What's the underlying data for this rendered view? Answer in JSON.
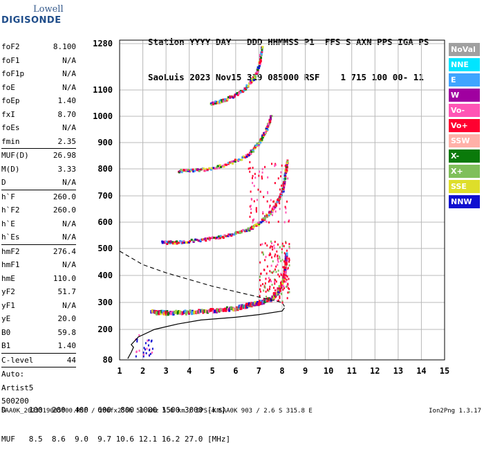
{
  "logo": {
    "top": "Lowell",
    "main": "DIGISONDE"
  },
  "header": {
    "line1": "Station YYYY DAY   DDD HHMMSS P1  FFS S AXN PPS IGA PS",
    "line2": "SaoLuis 2023 Nov15 319 085000 RSF    1 715 100 00- 11"
  },
  "params": [
    {
      "label": "foF2",
      "value": "8.100"
    },
    {
      "label": "foF1",
      "value": "N/A"
    },
    {
      "label": "foF1p",
      "value": "N/A"
    },
    {
      "label": "foE",
      "value": "N/A"
    },
    {
      "label": "foEp",
      "value": "1.40"
    },
    {
      "label": "fxI",
      "value": "8.70"
    },
    {
      "label": "foEs",
      "value": "N/A"
    },
    {
      "label": "fmin",
      "value": "2.35"
    },
    {
      "label": "MUF(D)",
      "value": "26.98"
    },
    {
      "label": "M(D)",
      "value": "3.33"
    },
    {
      "label": "D",
      "value": "N/A"
    },
    {
      "label": "h`F",
      "value": "260.0"
    },
    {
      "label": "h`F2",
      "value": "260.0"
    },
    {
      "label": "h`E",
      "value": "N/A"
    },
    {
      "label": "h`Es",
      "value": "N/A"
    },
    {
      "label": "hmF2",
      "value": "276.4"
    },
    {
      "label": "hmF1",
      "value": "N/A"
    },
    {
      "label": "hmE",
      "value": "110.0"
    },
    {
      "label": "yF2",
      "value": "51.7"
    },
    {
      "label": "yF1",
      "value": "N/A"
    },
    {
      "label": "yE",
      "value": "20.0"
    },
    {
      "label": "B0",
      "value": "59.8"
    },
    {
      "label": "B1",
      "value": "1.40"
    },
    {
      "label": "C-level",
      "value": "44"
    },
    {
      "label": "Auto:",
      "value": ""
    },
    {
      "label": "Artist5",
      "value": ""
    },
    {
      "label": "500200",
      "value": ""
    }
  ],
  "bottom": {
    "d_line": "D     100  200  400  600  800 1000 1500 3000 [km]",
    "muf_line": "MUF   8.5  8.6  9.0  9.7 10.6 12.1 16.2 27.0 [MHz]"
  },
  "footer": {
    "left": "SAA0K_2023319085000.RSF / 280fx256h 50 kHz 5.0 km / DPS-4 SAA0K 903 / 2.6 S 315.8 E",
    "right": "Ion2Png 1.3.17"
  },
  "legend": [
    {
      "label": "NoVal",
      "color": "#a0a0a0"
    },
    {
      "label": "NNE",
      "color": "#00e5ff"
    },
    {
      "label": "E",
      "color": "#3fa4ff"
    },
    {
      "label": "W",
      "color": "#a000a0"
    },
    {
      "label": "Vo-",
      "color": "#ff55b5"
    },
    {
      "label": "Vo+",
      "color": "#ff0030"
    },
    {
      "label": "SSW",
      "color": "#ffb0a8"
    },
    {
      "label": "X-",
      "color": "#0a7a0a"
    },
    {
      "label": "X+",
      "color": "#7fbf5a"
    },
    {
      "label": "SSE",
      "color": "#dede2a"
    },
    {
      "label": "NNW",
      "color": "#1010d0"
    }
  ],
  "chart_data": {
    "type": "scatter",
    "title": "",
    "xlabel": "",
    "ylabel": "",
    "xlim": [
      1,
      15
    ],
    "ylim": [
      80,
      1300
    ],
    "x_ticks": [
      1,
      2,
      3,
      4,
      5,
      6,
      7,
      8,
      9,
      10,
      11,
      12,
      13,
      14,
      15
    ],
    "y_ticks": [
      80,
      200,
      300,
      400,
      500,
      600,
      700,
      800,
      900,
      1000,
      1100,
      1280
    ],
    "grid": true,
    "traces": [
      {
        "name": "F2 trace (1st hop)",
        "points": [
          [
            2.35,
            265
          ],
          [
            3,
            262
          ],
          [
            4,
            265
          ],
          [
            5,
            270
          ],
          [
            6,
            280
          ],
          [
            6.5,
            290
          ],
          [
            7,
            300
          ],
          [
            7.5,
            315
          ],
          [
            7.8,
            340
          ],
          [
            8.0,
            380
          ],
          [
            8.1,
            430
          ],
          [
            8.15,
            480
          ]
        ]
      },
      {
        "name": "F2 trace (2nd hop)",
        "points": [
          [
            2.8,
            520
          ],
          [
            3.5,
            522
          ],
          [
            4.5,
            530
          ],
          [
            5.5,
            545
          ],
          [
            6.5,
            570
          ],
          [
            7.0,
            595
          ],
          [
            7.5,
            640
          ],
          [
            7.8,
            680
          ],
          [
            8.0,
            720
          ],
          [
            8.1,
            780
          ],
          [
            8.2,
            830
          ]
        ]
      },
      {
        "name": "F2 trace (3rd hop)",
        "points": [
          [
            3.5,
            790
          ],
          [
            4.5,
            795
          ],
          [
            5.5,
            810
          ],
          [
            6.5,
            850
          ],
          [
            7.0,
            900
          ],
          [
            7.3,
            950
          ],
          [
            7.5,
            1000
          ]
        ]
      },
      {
        "name": "F2 trace (4th hop)",
        "points": [
          [
            4.9,
            1045
          ],
          [
            5.5,
            1060
          ],
          [
            6.3,
            1095
          ],
          [
            6.8,
            1150
          ],
          [
            7.0,
            1200
          ],
          [
            7.1,
            1270
          ]
        ]
      }
    ],
    "profile_solid": [
      [
        1.35,
        85
      ],
      [
        1.5,
        110
      ],
      [
        1.6,
        130
      ],
      [
        1.5,
        140
      ],
      [
        1.8,
        170
      ],
      [
        2.5,
        200
      ],
      [
        3.5,
        220
      ],
      [
        4.5,
        235
      ],
      [
        6,
        245
      ],
      [
        7,
        255
      ],
      [
        8,
        268
      ],
      [
        8.1,
        280
      ]
    ],
    "profile_dashed": [
      [
        1,
        490
      ],
      [
        1.5,
        465
      ],
      [
        2,
        440
      ],
      [
        3,
        410
      ],
      [
        4,
        385
      ],
      [
        5,
        360
      ],
      [
        6,
        340
      ],
      [
        7,
        320
      ],
      [
        7.5,
        310
      ],
      [
        8,
        300
      ],
      [
        8.1,
        285
      ]
    ]
  }
}
